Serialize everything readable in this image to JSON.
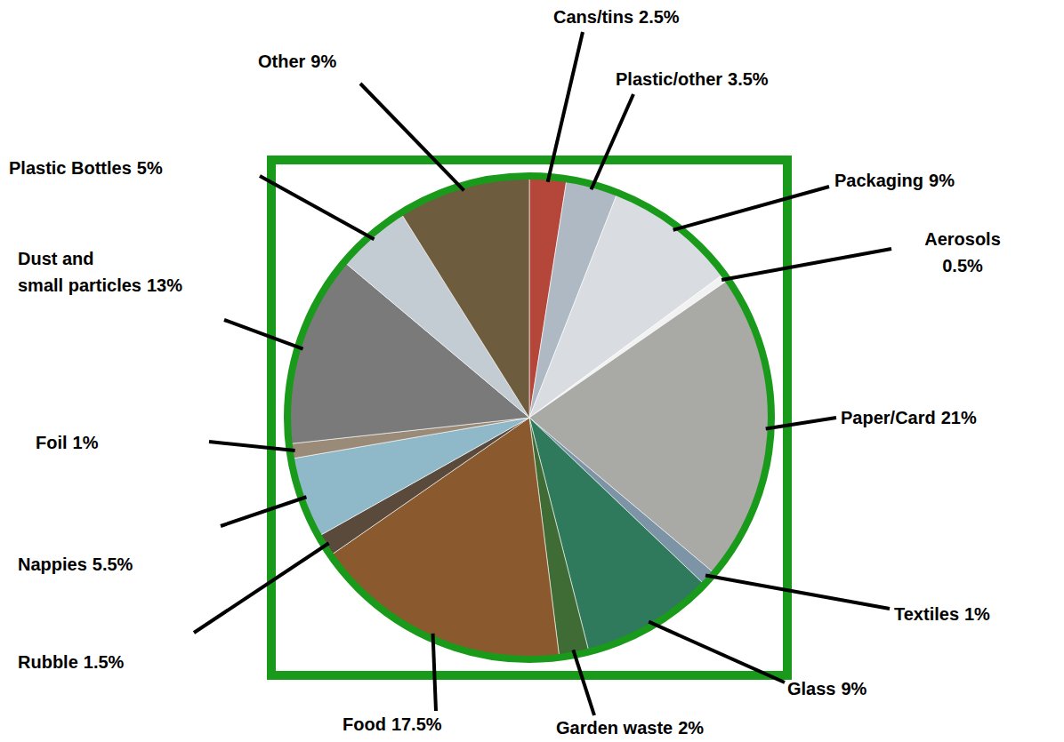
{
  "chart_data": {
    "type": "pie",
    "categories": [
      "Cans/tins",
      "Plastic/other",
      "Packaging",
      "Aerosols",
      "Paper/Card",
      "Textiles",
      "Glass",
      "Garden waste",
      "Food",
      "Rubble",
      "Nappies",
      "Foil",
      "Dust and small particles",
      "Plastic Bottles",
      "Other"
    ],
    "values": [
      2.5,
      3.5,
      9,
      0.5,
      21,
      1,
      9,
      2,
      17.5,
      1.5,
      5.5,
      1,
      13,
      5,
      9
    ],
    "value_labels": [
      "2.5%",
      "3.5%",
      "9%",
      "0.5%",
      "21%",
      "1%",
      "9%",
      "2%",
      "17.5%",
      "1.5%",
      "5.5%",
      "1%",
      "13%",
      "5%",
      "9%"
    ],
    "colors": [
      "#b5463a",
      "#aeb9c4",
      "#d9dde2",
      "#f2f2f2",
      "#a9a9a6",
      "#7d93a6",
      "#2f7a5c",
      "#3f6b35",
      "#8a5a2e",
      "#5a4a3c",
      "#8fb9c9",
      "#9a8a78",
      "#7a7a7a",
      "#c3cbd3",
      "#6e5c3e"
    ],
    "data_labels": true
  }
}
